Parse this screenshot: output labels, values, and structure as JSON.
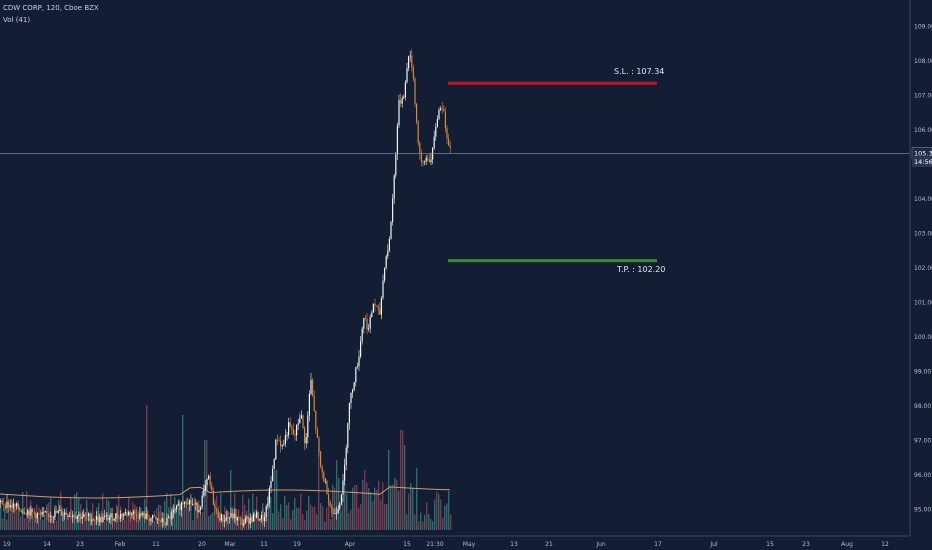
{
  "header": {
    "symbol": "CDW CORP, 120, Cboe BZX",
    "volume": "Vol (41)"
  },
  "chart_data": {
    "type": "candlestick",
    "x_ticks": [
      "19",
      "14",
      "23",
      "Feb",
      "11",
      "20",
      "Mar",
      "11",
      "19",
      "Apr",
      "15",
      "21:30",
      "May",
      "13",
      "21",
      "Jun",
      "17",
      "Jul",
      "15",
      "23",
      "Aug",
      "12"
    ],
    "y_ticks": [
      "109.00",
      "108.00",
      "107.00",
      "106.00",
      "104.00",
      "103.00",
      "102.00",
      "101.00",
      "100.00",
      "99.00",
      "98.00",
      "97.00",
      "96.00",
      "95.00"
    ],
    "ylim": [
      94.6,
      109.4
    ],
    "current_price": {
      "value": 105.31,
      "label": "105.31",
      "countdown": "14:56"
    },
    "levels": [
      {
        "name": "S.L.",
        "label": "S.L. : 107.34",
        "value": 107.34,
        "color": "#c1121f"
      },
      {
        "name": "T.P.",
        "label": "T.P. : 102.20",
        "value": 102.2,
        "color": "#3d8b2f"
      }
    ],
    "price_path": [
      [
        0,
        95.2
      ],
      [
        40,
        94.8
      ],
      [
        60,
        94.9
      ],
      [
        100,
        94.7
      ],
      [
        130,
        94.9
      ],
      [
        165,
        94.6
      ],
      [
        185,
        95.3
      ],
      [
        198,
        95.0
      ],
      [
        208,
        95.9
      ],
      [
        215,
        94.9
      ],
      [
        222,
        94.7
      ],
      [
        232,
        94.8
      ],
      [
        242,
        94.6
      ],
      [
        255,
        94.8
      ],
      [
        264,
        94.7
      ],
      [
        270,
        95.7
      ],
      [
        276,
        97.1
      ],
      [
        282,
        96.8
      ],
      [
        288,
        97.4
      ],
      [
        294,
        97.1
      ],
      [
        300,
        97.8
      ],
      [
        305,
        96.8
      ],
      [
        310,
        98.8
      ],
      [
        315,
        97.4
      ],
      [
        320,
        96.2
      ],
      [
        326,
        95.6
      ],
      [
        332,
        94.8
      ],
      [
        338,
        95.1
      ],
      [
        343,
        95.8
      ],
      [
        348,
        97.9
      ],
      [
        353,
        98.7
      ],
      [
        358,
        99.4
      ],
      [
        363,
        100.6
      ],
      [
        368,
        100.2
      ],
      [
        373,
        101.0
      ],
      [
        379,
        100.6
      ],
      [
        384,
        102.1
      ],
      [
        389,
        102.8
      ],
      [
        394,
        104.8
      ],
      [
        398,
        106.7
      ],
      [
        404,
        107.1
      ],
      [
        408,
        108.2
      ],
      [
        412,
        107.8
      ],
      [
        417,
        105.8
      ],
      [
        421,
        104.9
      ],
      [
        426,
        105.2
      ],
      [
        431,
        105.1
      ],
      [
        436,
        106.3
      ],
      [
        441,
        106.8
      ],
      [
        446,
        105.9
      ],
      [
        450,
        105.4
      ]
    ],
    "volume_ma": {
      "name": "MA",
      "color": "#d29a75"
    }
  }
}
